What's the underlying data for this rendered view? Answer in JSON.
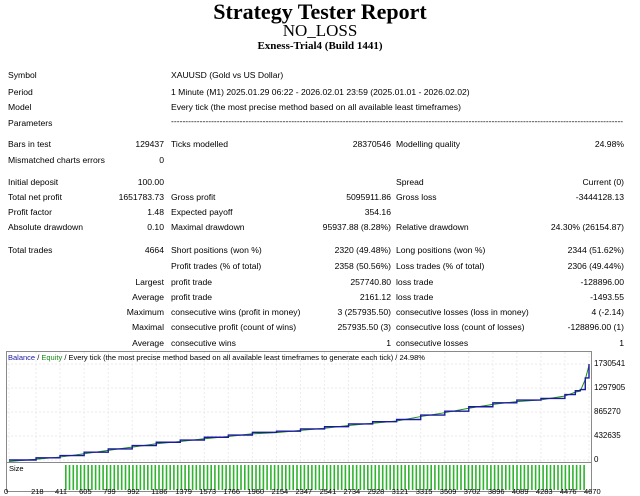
{
  "header": {
    "title": "Strategy Tester Report",
    "expert": "NO_LOSS",
    "build": "Exness-Trial4 (Build 1441)"
  },
  "settings": [
    {
      "label": "Symbol",
      "value": "XAUUSD (Gold vs US Dollar)"
    },
    {
      "label": "Period",
      "value": "1 Minute (M1) 2025.01.29 06:22 - 2026.02.01 23:59 (2025.01.01 - 2026.02.02)"
    },
    {
      "label": "Model",
      "value": "Every tick (the most precise method based on all available least timeframes)"
    },
    {
      "label": "Parameters",
      "value": "-----------------------------------------------------------------------------------------------------------------------------------------------------------------------------------------------"
    }
  ],
  "results": {
    "bars_in_test_label": "Bars in test",
    "bars_in_test": "129437",
    "ticks_modelled_label": "Ticks modelled",
    "ticks_modelled": "28370546",
    "modelling_quality_label": "Modelling quality",
    "modelling_quality": "24.98%",
    "mismatched_label": "Mismatched charts errors",
    "mismatched": "0",
    "initial_deposit_label": "Initial deposit",
    "initial_deposit": "100.00",
    "spread_label": "Spread",
    "spread": "Current (0)",
    "total_net_profit_label": "Total net profit",
    "total_net_profit": "1651783.73",
    "gross_profit_label": "Gross profit",
    "gross_profit": "5095911.86",
    "gross_loss_label": "Gross loss",
    "gross_loss": "-3444128.13",
    "profit_factor_label": "Profit factor",
    "profit_factor": "1.48",
    "expected_payoff_label": "Expected payoff",
    "expected_payoff": "354.16",
    "absolute_drawdown_label": "Absolute drawdown",
    "absolute_drawdown": "0.10",
    "maximal_drawdown_label": "Maximal drawdown",
    "maximal_drawdown": "95937.88 (8.28%)",
    "relative_drawdown_label": "Relative drawdown",
    "relative_drawdown": "24.30% (26154.87)",
    "total_trades_label": "Total trades",
    "total_trades": "4664",
    "short_positions_label": "Short positions (won %)",
    "short_positions": "2320 (49.48%)",
    "long_positions_label": "Long positions (won %)",
    "long_positions": "2344 (51.62%)",
    "profit_trades_label": "Profit trades (% of total)",
    "profit_trades": "2358 (50.56%)",
    "loss_trades_label": "Loss trades (% of total)",
    "loss_trades": "2306 (49.44%)",
    "largest_label": "Largest",
    "largest_profit_label": "profit trade",
    "largest_profit": "257740.80",
    "largest_loss_label": "loss trade",
    "largest_loss": "-128896.00",
    "average_label": "Average",
    "average_profit_label": "profit trade",
    "average_profit": "2161.12",
    "average_loss_label": "loss trade",
    "average_loss": "-1493.55",
    "maximum_label": "Maximum",
    "max_cons_wins_label": "consecutive wins (profit in money)",
    "max_cons_wins": "3 (257935.50)",
    "max_cons_losses_label": "consecutive losses (loss in money)",
    "max_cons_losses": "4 (-2.14)",
    "maximal_label": "Maximal",
    "maximal_cons_profit_label": "consecutive profit (count of wins)",
    "maximal_cons_profit": "257935.50 (3)",
    "maximal_cons_loss_label": "consecutive loss (count of losses)",
    "maximal_cons_loss": "-128896.00 (1)",
    "average2_label": "Average",
    "avg_cons_wins_label": "consecutive wins",
    "avg_cons_wins": "1",
    "avg_cons_losses_label": "consecutive losses",
    "avg_cons_losses": "1"
  },
  "chart_legend": {
    "balance": "Balance",
    "slash": " / ",
    "equity": "Equity",
    "rest": " / Every tick (the most precise method based on all available least timeframes to generate each tick) / 24.98%"
  },
  "size_label": "Size",
  "chart_data": {
    "type": "line",
    "series": [
      {
        "name": "Balance",
        "color": "#1a1aa0"
      },
      {
        "name": "Equity",
        "color": "#1a8a1a"
      }
    ],
    "x_ticks": [
      "0",
      "218",
      "411",
      "605",
      "799",
      "992",
      "1186",
      "1379",
      "1573",
      "1766",
      "1960",
      "2154",
      "2347",
      "2541",
      "2734",
      "2928",
      "3121",
      "3315",
      "3509",
      "3702",
      "3896",
      "4089",
      "4283",
      "4476",
      "4670"
    ],
    "y_ticks": [
      "1730541",
      "1297905",
      "865270",
      "432635",
      "0"
    ],
    "ylim": [
      0,
      1730541
    ],
    "xlim": [
      0,
      4670
    ],
    "x": [
      0,
      218,
      411,
      605,
      799,
      992,
      1186,
      1379,
      1573,
      1766,
      1960,
      2154,
      2347,
      2541,
      2734,
      2928,
      3121,
      3315,
      3509,
      3702,
      3896,
      4089,
      4283,
      4476,
      4560,
      4600,
      4640,
      4670
    ],
    "y": [
      0,
      40000,
      80000,
      140000,
      200000,
      260000,
      320000,
      360000,
      410000,
      450000,
      500000,
      520000,
      560000,
      600000,
      650000,
      690000,
      730000,
      810000,
      880000,
      960000,
      1030000,
      1080000,
      1110000,
      1180000,
      1250000,
      1270000,
      1480000,
      1730541
    ]
  }
}
